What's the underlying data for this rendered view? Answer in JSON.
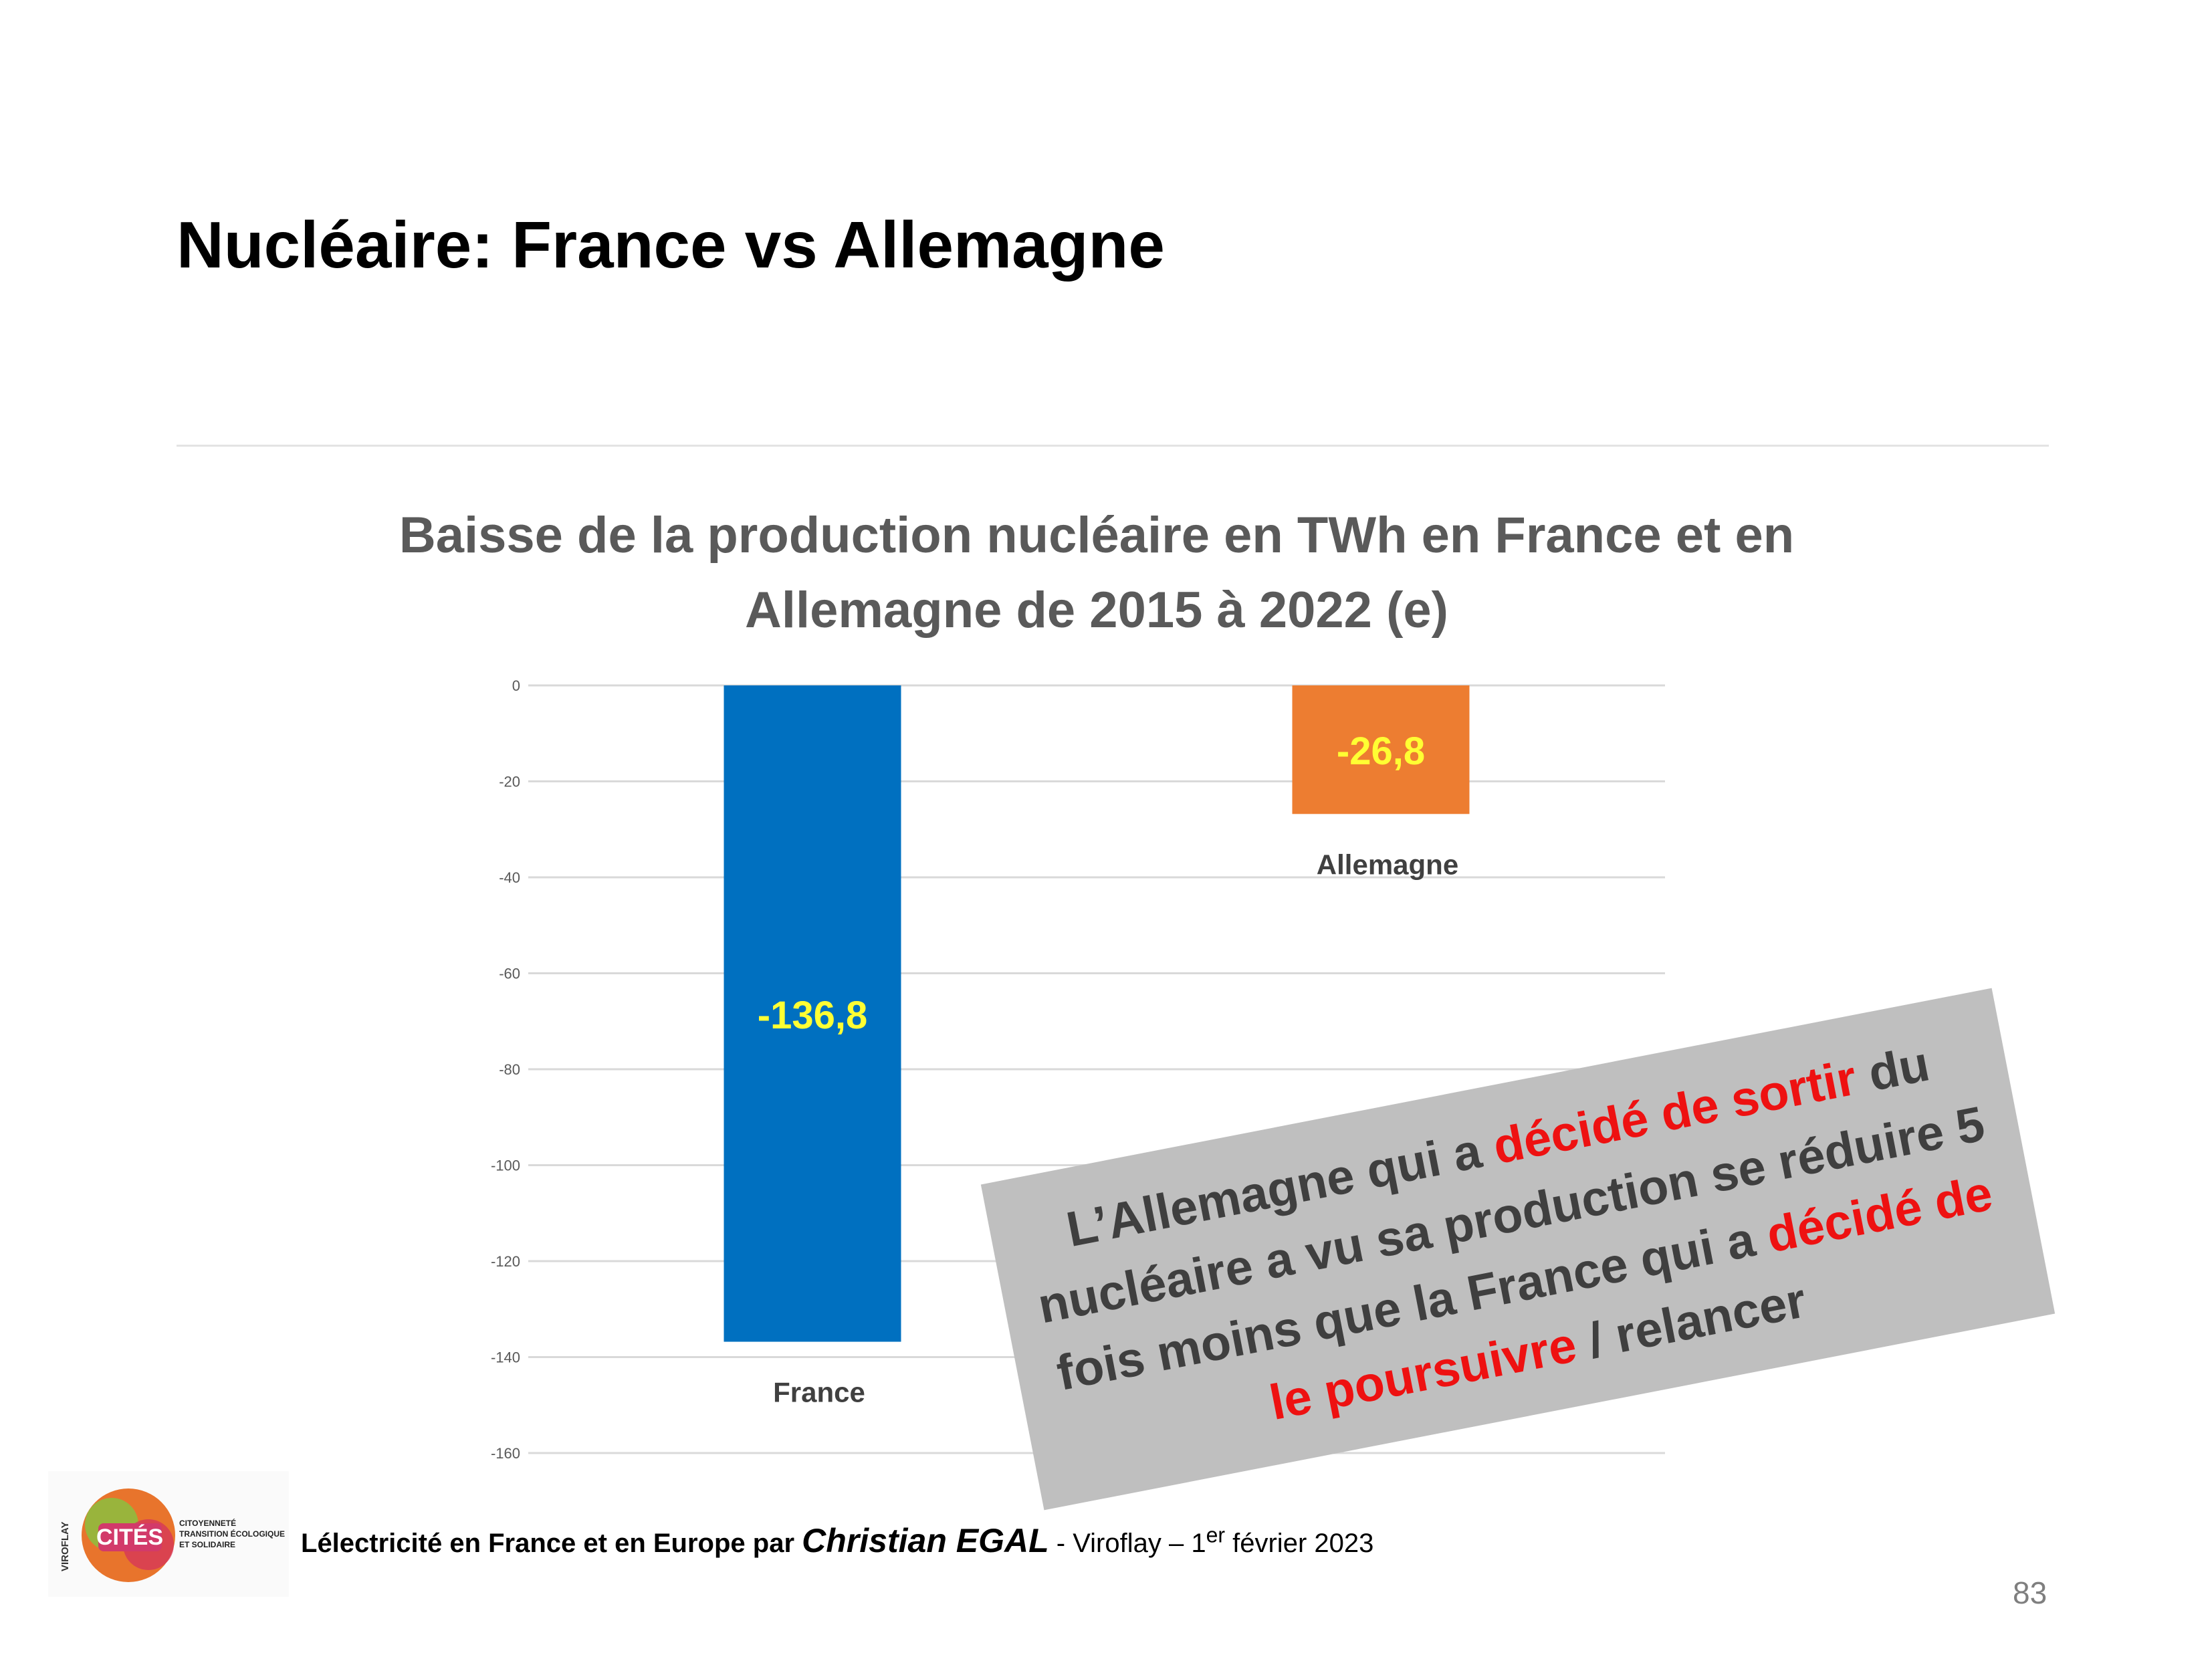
{
  "slide": {
    "title": "Nucléaire: France vs Allemagne",
    "page_number": "83"
  },
  "chart_data": {
    "type": "bar",
    "title_line1": "Baisse de la production nucléaire en TWh en France et en",
    "title_line2": "Allemagne de 2015 à 2022 (e)",
    "categories": [
      "France",
      "Allemagne"
    ],
    "values": [
      -136.8,
      -26.8
    ],
    "data_labels": [
      "-136,8",
      "-26,8"
    ],
    "colors": [
      "#0070c0",
      "#ed7d31"
    ],
    "data_label_color": "#ffff33",
    "ylim": [
      -160,
      0
    ],
    "yticks": [
      0,
      -20,
      -40,
      -60,
      -80,
      -100,
      -120,
      -140,
      -160
    ],
    "grid": true
  },
  "callout": {
    "t1": "L’Allemagne qui a ",
    "r1": "décidé de sortir",
    "t2": " du nucléaire a vu sa production se réduire 5 fois moins que la France qui a ",
    "r2": "décidé de le poursuivre",
    "t3": " / relancer"
  },
  "footer": {
    "prefix": "L",
    "subject": "électricité en France et en Europe par ",
    "author": "Christian EGAL",
    "place": " - Viroflay – 1",
    "sup": "er",
    "date": " février 2023",
    "logo": {
      "main": "CITÉS",
      "side": "VIROFLAY",
      "line1": "CITOYENNETÉ",
      "line2": "TRANSITION ÉCOLOGIQUE",
      "line3": "ET SOLIDAIRE"
    }
  }
}
